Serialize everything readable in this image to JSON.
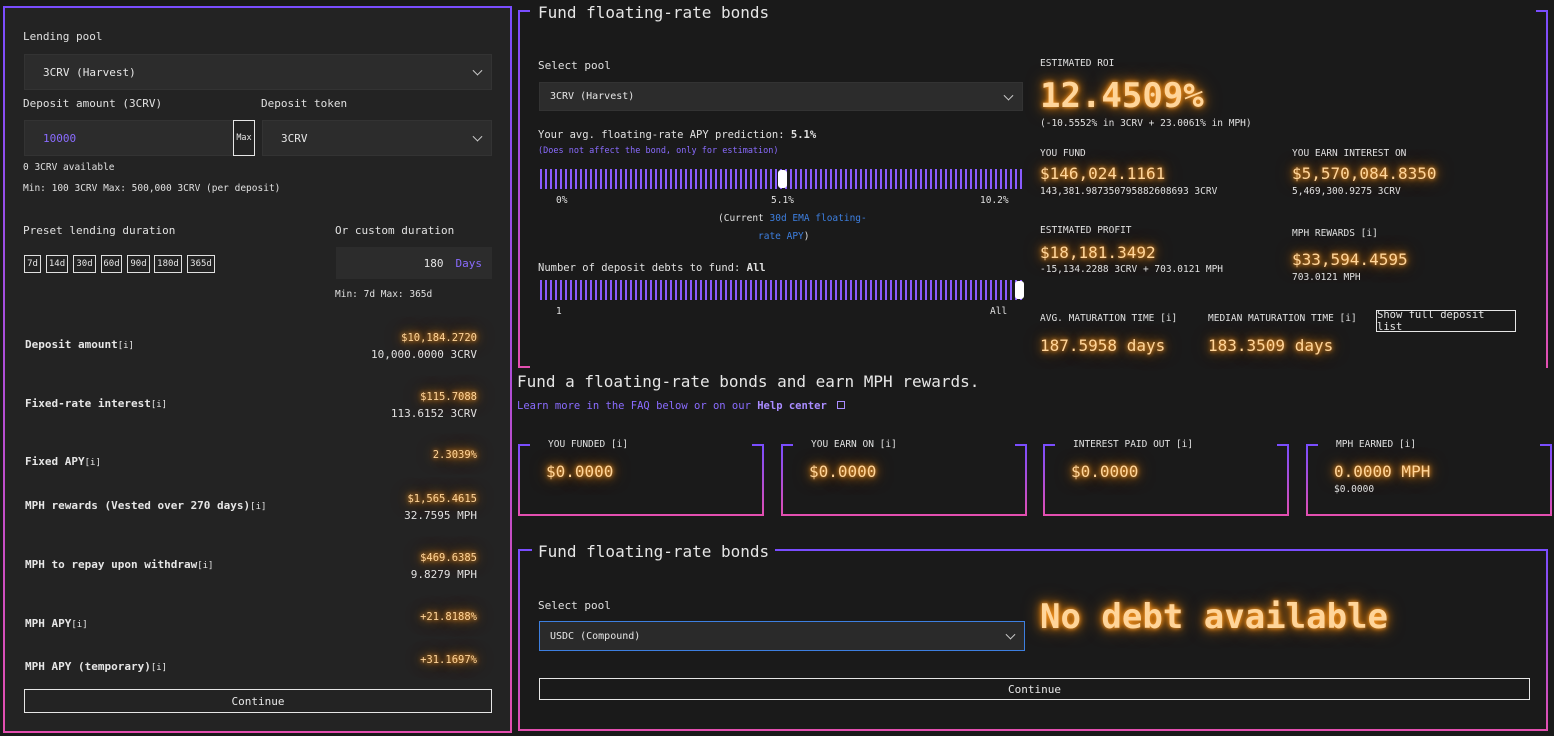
{
  "left": {
    "lending_pool_label": "Lending pool",
    "lending_pool_value": "3CRV (Harvest)",
    "deposit_amount_label": "Deposit amount (3CRV)",
    "deposit_amount_value": "10000",
    "max_label": "Max",
    "deposit_token_label": "Deposit token",
    "deposit_token_value": "3CRV",
    "available": "0 3CRV available",
    "minmax": "Min: 100 3CRV Max: 500,000 3CRV (per deposit)",
    "preset_label": "Preset lending duration",
    "presets": [
      "7d",
      "14d",
      "30d",
      "60d",
      "90d",
      "180d",
      "365d"
    ],
    "custom_label": "Or custom duration",
    "custom_value": "180",
    "custom_unit": "Days",
    "custom_minmax": "Min: 7d Max: 365d",
    "rows": [
      {
        "label": "Deposit amount",
        "info": "[i]",
        "value": "$10,184.2720",
        "sub": "10,000.0000 3CRV"
      },
      {
        "label": "Fixed-rate interest",
        "info": "[i]",
        "value": "$115.7088",
        "sub": "113.6152 3CRV"
      },
      {
        "label": "Fixed APY",
        "info": "[i]",
        "value": "2.3039%",
        "sub": ""
      },
      {
        "label": "MPH rewards (Vested over 270 days)",
        "info": "[i]",
        "value": "$1,565.4615",
        "sub": "32.7595 MPH"
      },
      {
        "label": "MPH to repay upon withdraw",
        "info": "[i]",
        "value": "$469.6385",
        "sub": "9.8279 MPH"
      },
      {
        "label": "MPH APY",
        "info": "[i]",
        "value": "+21.8188%",
        "sub": ""
      },
      {
        "label": "MPH APY (temporary)",
        "info": "[i]",
        "value": "+31.1697%",
        "sub": ""
      }
    ],
    "continue_label": "Continue"
  },
  "fund": {
    "title": "Fund floating-rate bonds",
    "select_pool_label": "Select pool",
    "select_pool_value": "3CRV (Harvest)",
    "apy_prediction_label": "Your avg. floating-rate APY prediction:",
    "apy_prediction_value": "5.1%",
    "apy_note": "(Does not affect the bond, only for estimation)",
    "slider1_min": "0%",
    "slider1_mid": "5.1%",
    "slider1_max": "10.2%",
    "slider1_position": 0.5,
    "current_prefix": "(Current",
    "current_link": "30d EMA floating-",
    "current_link2": "rate APY",
    "current_suffix": ")",
    "debts_label": "Number of deposit debts to fund:",
    "debts_value": "All",
    "slider2_min": "1",
    "slider2_max": "All",
    "slider2_position": 1.0,
    "roi_label": "ESTIMATED ROI",
    "roi_value": "12.4509%",
    "roi_sub": "(-10.5552% in 3CRV + 23.0061% in MPH)",
    "you_fund_label": "YOU FUND",
    "you_fund_value": "$146,024.1161",
    "you_fund_sub": "143,381.987350795882608693 3CRV",
    "earn_interest_label": "YOU EARN INTEREST ON",
    "earn_interest_value": "$5,570,084.8350",
    "earn_interest_sub": "5,469,300.9275 3CRV",
    "profit_label": "ESTIMATED PROFIT",
    "profit_value": "$18,181.3492",
    "profit_sub": "-15,134.2288 3CRV + 703.0121 MPH",
    "mph_rewards_label": "MPH REWARDS [i]",
    "mph_rewards_value": "$33,594.4595",
    "mph_rewards_sub": "703.0121 MPH",
    "avg_mat_label": "AVG. MATURATION TIME [i]",
    "avg_mat_value": "187.5958 days",
    "median_mat_label": "MEDIAN MATURATION TIME [i]",
    "median_mat_value": "183.3509 days",
    "show_list_label": "Show full deposit list"
  },
  "intro": {
    "heading": "Fund a floating-rate bonds and earn MPH rewards.",
    "learn_prefix": "Learn more in the FAQ below or on our",
    "help_link": "Help center"
  },
  "cards": [
    {
      "title": "YOU FUNDED [i]",
      "value": "$0.0000",
      "sub": ""
    },
    {
      "title": "YOU EARN ON [i]",
      "value": "$0.0000",
      "sub": ""
    },
    {
      "title": "INTEREST PAID OUT [i]",
      "value": "$0.0000",
      "sub": ""
    },
    {
      "title": "MPH EARNED [i]",
      "value": "0.0000 MPH",
      "sub": "$0.0000"
    }
  ],
  "fund2": {
    "title": "Fund floating-rate bonds",
    "select_pool_label": "Select pool",
    "select_pool_value": "USDC (Compound)",
    "no_debt": "No debt available",
    "continue_label": "Continue"
  }
}
